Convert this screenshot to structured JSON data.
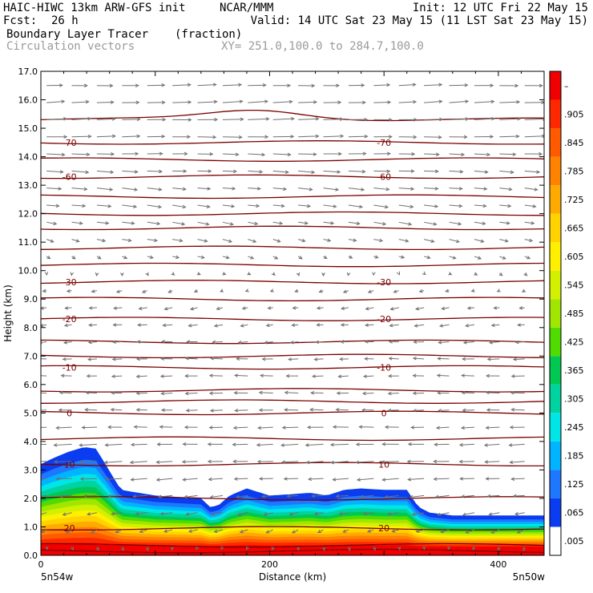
{
  "header": {
    "model": "HAIC-HIWC 13km ARW-GFS init",
    "org": "NCAR/MMM",
    "init": "Init: 12 UTC Fri 22 May 15",
    "fcst_label": "Fcst:",
    "fcst_value": "26 h",
    "valid": "Valid: 14 UTC Sat 23 May 15 (11 LST Sat 23 May 15)",
    "field_name": "Boundary Layer Tracer",
    "field_units": "(fraction)",
    "vector_label": "Circulation vectors",
    "xy_range": "XY= 251.0,100.0 to 284.7,100.0"
  },
  "chart_data": {
    "type": "heatmap",
    "title": "Boundary Layer Tracer",
    "xlabel": "Distance (km)",
    "ylabel": "Height (km)",
    "xlim": [
      0,
      440
    ],
    "ylim": [
      0,
      17
    ],
    "x_ticks": [
      0,
      200,
      400
    ],
    "y_ticks": [
      "0.0",
      "1.0",
      "2.0",
      "3.0",
      "4.0",
      "5.0",
      "6.0",
      "7.0",
      "8.0",
      "9.0",
      "10.0",
      "11.0",
      "12.0",
      "13.0",
      "14.0",
      "15.0",
      "16.0",
      "17.0"
    ],
    "left_endpoint": "5n54w",
    "right_endpoint": "5n50w",
    "colorbar": {
      "labels": [
        ".005",
        ".065",
        ".125",
        ".185",
        ".245",
        ".305",
        ".365",
        ".425",
        ".485",
        ".545",
        ".605",
        ".665",
        ".725",
        ".785",
        ".845",
        ".905",
        "–"
      ],
      "colors": [
        "#ffffff",
        "#0a3cf0",
        "#1e78ff",
        "#00b4ff",
        "#00e6e6",
        "#00d2a0",
        "#00c850",
        "#50dc00",
        "#a0e600",
        "#d2f000",
        "#fff000",
        "#ffd200",
        "#ffaa00",
        "#ff8200",
        "#ff5a00",
        "#ff2800",
        "#f00000"
      ]
    },
    "pbl_top": {
      "x": [
        0,
        10,
        25,
        38,
        48,
        55,
        70,
        100,
        140,
        148,
        155,
        165,
        180,
        200,
        220,
        235,
        250,
        265,
        280,
        300,
        320,
        330,
        340,
        360,
        380,
        400,
        420,
        440
      ],
      "y": [
        3.2,
        3.4,
        3.65,
        3.8,
        3.75,
        3.3,
        2.3,
        2.1,
        2.0,
        1.7,
        1.75,
        2.1,
        2.35,
        2.1,
        2.15,
        2.2,
        2.1,
        2.3,
        2.35,
        2.3,
        2.3,
        1.7,
        1.5,
        1.4,
        1.4,
        1.4,
        1.4,
        1.4
      ]
    },
    "temperature_contours": [
      {
        "label": "-70",
        "height": 14.5
      },
      {
        "label": "-60",
        "height": 13.3
      },
      {
        "label": "-30",
        "height": 9.6
      },
      {
        "label": "-20",
        "height": 8.3
      },
      {
        "label": "-10",
        "height": 6.6
      },
      {
        "label": "0",
        "height": 5.0
      },
      {
        "label": "10",
        "height": 3.2
      },
      {
        "label": "20",
        "height": 0.95
      }
    ],
    "unlabeled_contours": [
      15.3,
      13.9,
      12.6,
      12.0,
      11.5,
      10.8,
      10.2,
      9.0,
      7.5,
      7.0,
      5.8,
      5.4,
      4.1,
      2.0,
      0.35,
      0.15
    ],
    "wind_profile": {
      "height": [
        0.3,
        1.0,
        2.0,
        3.0,
        4.0,
        5.0,
        6.0,
        7.0,
        8.0,
        9.0,
        10.0,
        11.0,
        12.0,
        13.0,
        14.0,
        15.0,
        16.0,
        17.0
      ],
      "u": [
        0,
        -2,
        -3,
        -4,
        -4,
        -3,
        -3,
        -2.5,
        -2,
        -1.5,
        0.5,
        2,
        3,
        3.5,
        4,
        5,
        4.5,
        4
      ],
      "w": [
        -0.8,
        -0.6,
        -0.3,
        -0.2,
        -0.1,
        0,
        0,
        0,
        -0.2,
        -0.3,
        -0.4,
        -0.5,
        -0.4,
        -0.3,
        -0.1,
        0.1,
        0.2,
        0
      ]
    }
  }
}
